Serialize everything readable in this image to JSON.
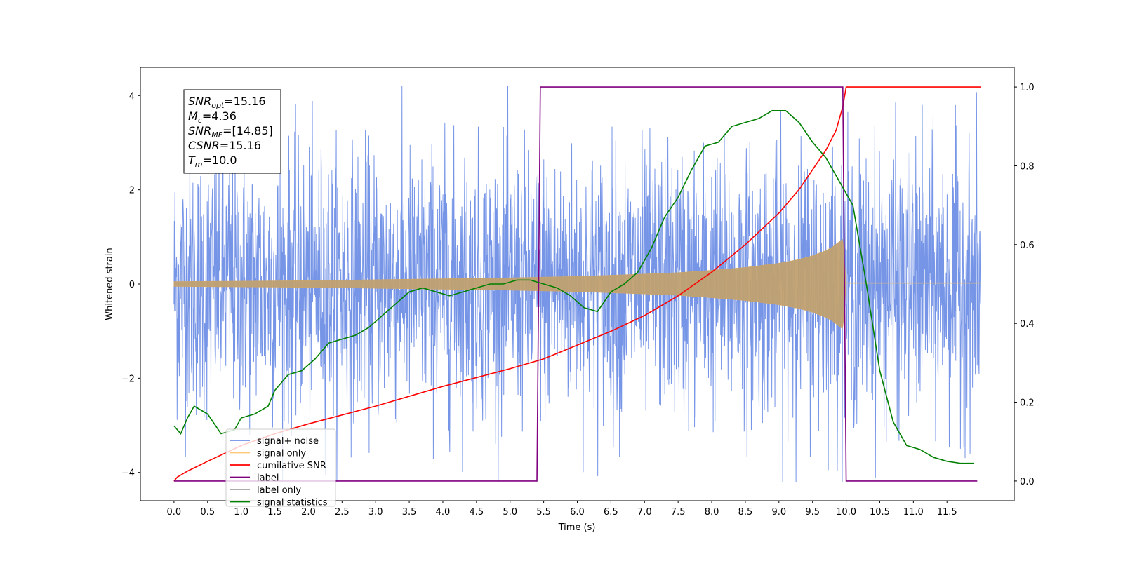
{
  "chart_data": {
    "type": "line",
    "title": "",
    "xlabel": "Time (s)",
    "ylabel": "Whitened strain",
    "xlim": [
      -0.5,
      12.5
    ],
    "ylim": [
      -4.6,
      4.6
    ],
    "y2lim": [
      -0.05,
      1.05
    ],
    "xticks": [
      "0.0",
      "0.5",
      "1.0",
      "1.5",
      "2.0",
      "2.5",
      "3.0",
      "3.5",
      "4.0",
      "4.5",
      "5.0",
      "5.5",
      "6.0",
      "6.5",
      "7.0",
      "7.5",
      "8.0",
      "8.5",
      "9.0",
      "9.5",
      "10.0",
      "10.5",
      "11.0",
      "11.5"
    ],
    "yticks": [
      "−4",
      "−2",
      "0",
      "2",
      "4"
    ],
    "y2ticks": [
      "0.0",
      "0.2",
      "0.4",
      "0.6",
      "0.8",
      "1.0"
    ],
    "annotation": [
      {
        "main": "SNR",
        "sub": "opt",
        "value": "=15.16"
      },
      {
        "main": "M",
        "sub": "c",
        "value": "=4.36"
      },
      {
        "main": "SNR",
        "sub": "MF",
        "value": "=[14.85]"
      },
      {
        "main": "CSNR",
        "sub": "",
        "value": "=15.16"
      },
      {
        "main": "T",
        "sub": "m",
        "value": "=10.0"
      }
    ],
    "legend": {
      "placement": "lower-left",
      "entries": [
        {
          "name": "signal+ noise",
          "color": "#6f8fe6"
        },
        {
          "name": "signal only",
          "color": "#ffc97a"
        },
        {
          "name": "cumilative SNR",
          "color": "#ff0000"
        },
        {
          "name": "label",
          "color": "#800080"
        },
        {
          "name": "label only",
          "color": "#a0a0a0"
        },
        {
          "name": "signal statistics",
          "color": "#008000"
        }
      ]
    },
    "series": [
      {
        "name": "signal+ noise",
        "axis": "left",
        "x_range": [
          0,
          12.0
        ],
        "typical_amplitude": 1.4,
        "peak_amplitude": 4.2
      },
      {
        "name": "signal only",
        "axis": "left",
        "x_range": [
          0,
          10.0
        ],
        "envelope_x": [
          0,
          1,
          2,
          3,
          4,
          5,
          6,
          7,
          7.5,
          8,
          8.5,
          9,
          9.3,
          9.5,
          9.7,
          9.8,
          9.9,
          9.95,
          10.0,
          12.0
        ],
        "envelope_y": [
          0.05,
          0.06,
          0.07,
          0.09,
          0.11,
          0.13,
          0.16,
          0.21,
          0.24,
          0.29,
          0.35,
          0.44,
          0.52,
          0.6,
          0.71,
          0.79,
          0.9,
          0.95,
          0.02,
          0.02
        ]
      },
      {
        "name": "cumilative SNR",
        "axis": "right",
        "x": [
          0,
          0.05,
          0.2,
          0.5,
          1,
          1.5,
          2,
          3,
          4,
          5,
          5.5,
          6,
          6.5,
          7,
          7.5,
          8,
          8.5,
          9,
          9.3,
          9.5,
          9.7,
          9.85,
          9.95,
          10.0,
          12.0
        ],
        "y": [
          0.0,
          0.01,
          0.025,
          0.05,
          0.09,
          0.12,
          0.145,
          0.19,
          0.24,
          0.285,
          0.31,
          0.345,
          0.38,
          0.42,
          0.47,
          0.53,
          0.6,
          0.68,
          0.74,
          0.79,
          0.84,
          0.89,
          0.95,
          1.0,
          1.0
        ]
      },
      {
        "name": "label",
        "axis": "right",
        "x": [
          0,
          5.4,
          5.45,
          9.95,
          10.0,
          11.95
        ],
        "y": [
          0,
          0,
          1,
          1,
          0,
          0
        ]
      },
      {
        "name": "signal statistics",
        "axis": "right",
        "x": [
          0,
          0.1,
          0.2,
          0.3,
          0.5,
          0.7,
          0.9,
          1.0,
          1.2,
          1.4,
          1.5,
          1.7,
          1.9,
          2.1,
          2.3,
          2.5,
          2.7,
          2.9,
          3.1,
          3.3,
          3.5,
          3.7,
          3.9,
          4.1,
          4.3,
          4.5,
          4.7,
          4.9,
          5.1,
          5.3,
          5.5,
          5.7,
          5.9,
          6.1,
          6.3,
          6.5,
          6.7,
          6.9,
          7.1,
          7.3,
          7.5,
          7.7,
          7.9,
          8.1,
          8.3,
          8.5,
          8.7,
          8.9,
          9.1,
          9.3,
          9.5,
          9.7,
          9.9,
          10.1,
          10.3,
          10.5,
          10.7,
          10.9,
          11.1,
          11.3,
          11.5,
          11.7,
          11.9
        ],
        "y": [
          0.14,
          0.12,
          0.16,
          0.19,
          0.17,
          0.12,
          0.13,
          0.16,
          0.17,
          0.19,
          0.23,
          0.27,
          0.28,
          0.31,
          0.35,
          0.36,
          0.37,
          0.39,
          0.42,
          0.45,
          0.48,
          0.49,
          0.48,
          0.47,
          0.48,
          0.49,
          0.5,
          0.5,
          0.51,
          0.51,
          0.5,
          0.49,
          0.47,
          0.44,
          0.43,
          0.48,
          0.5,
          0.53,
          0.59,
          0.67,
          0.72,
          0.79,
          0.85,
          0.86,
          0.9,
          0.91,
          0.92,
          0.94,
          0.94,
          0.91,
          0.86,
          0.82,
          0.76,
          0.7,
          0.5,
          0.28,
          0.15,
          0.09,
          0.08,
          0.06,
          0.05,
          0.045,
          0.045
        ]
      }
    ]
  }
}
